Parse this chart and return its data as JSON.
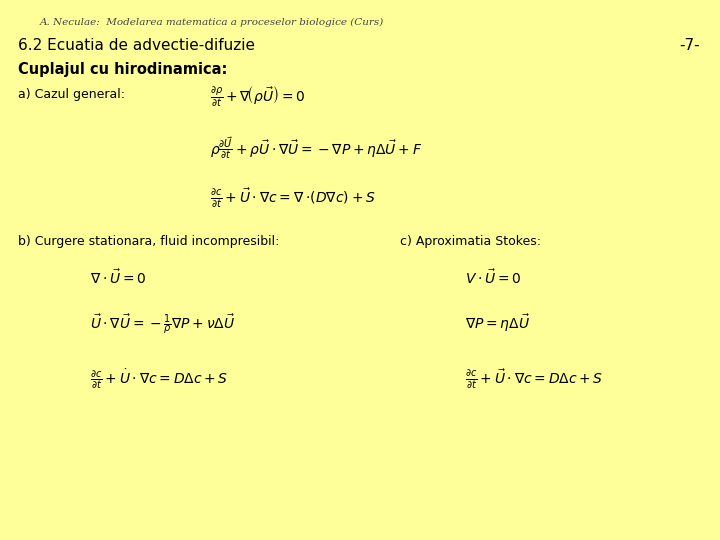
{
  "background_color": "#FFFF99",
  "header_text": "A. Neculae:  Modelarea matematica a proceselor biologice (Curs)",
  "header_fontsize": 7.5,
  "header_color": "#444444",
  "title_text": "6.2 Ecuatia de advectie-difuzie",
  "title_fontsize": 11,
  "page_number": "-7-",
  "page_number_fontsize": 11,
  "section_bold": "Cuplajul cu hirodinamica:",
  "section_bold_fontsize": 10.5,
  "label_a": "a) Cazul general:",
  "label_b": "b) Curgere stationara, fluid incompresibil:",
  "label_c": "c) Aproximatia Stokes:",
  "text_color": "#000000",
  "label_fontsize": 9,
  "eq_fontsize": 10
}
